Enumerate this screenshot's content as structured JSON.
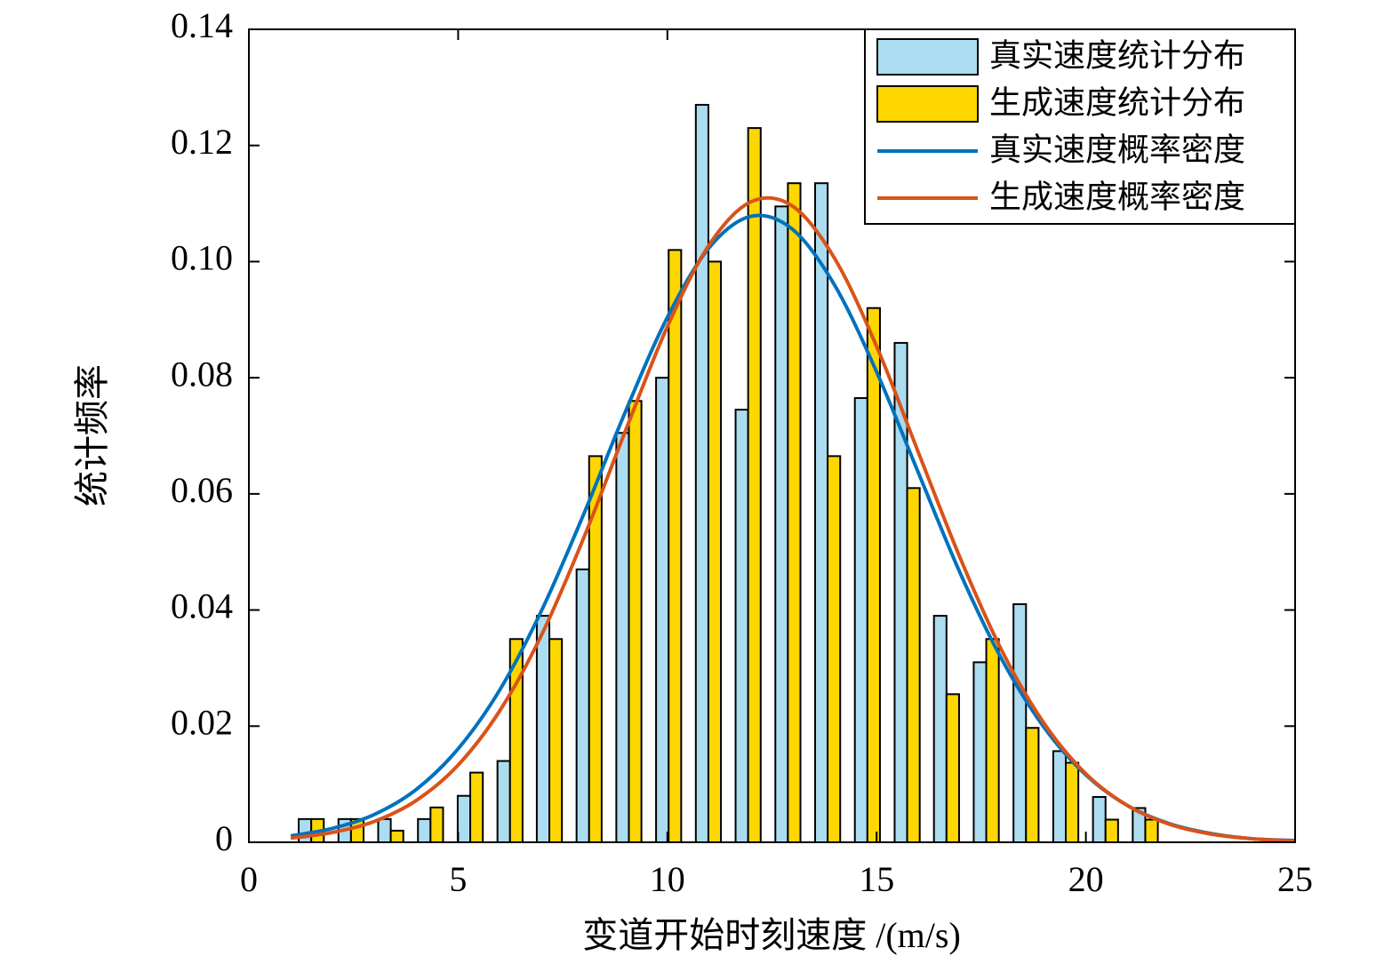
{
  "chart_data": {
    "type": "bar",
    "xlabel": "变道开始时刻速度 /(m/s)",
    "ylabel": "统计频率",
    "xlim": [
      0,
      25
    ],
    "xticks": [
      0,
      5,
      10,
      15,
      20,
      25
    ],
    "ylim": [
      0,
      0.14
    ],
    "yticks": [
      0,
      0.02,
      0.04,
      0.06,
      0.08,
      {
        "value": 0.1,
        "label": "0.10"
      },
      0.12,
      0.14
    ],
    "legend": "upper right",
    "x": [
      1.49,
      2.44,
      3.39,
      4.34,
      5.29,
      6.24,
      7.18,
      8.13,
      9.08,
      10.03,
      10.98,
      11.93,
      12.88,
      13.83,
      14.78,
      15.73,
      16.67,
      17.62,
      18.57,
      19.52,
      20.47,
      21.42
    ],
    "series": [
      {
        "name": "真实速度统计分布",
        "type": "bar",
        "color": "#acdcef",
        "values": [
          0.004,
          0.004,
          0.004,
          0.004,
          0.008,
          0.014,
          0.039,
          0.047,
          0.0705,
          0.08,
          0.127,
          0.0745,
          0.1095,
          0.1135,
          0.0765,
          0.086,
          0.039,
          0.031,
          0.041,
          0.0157,
          0.0078,
          0.0059
        ]
      },
      {
        "name": "生成速度统计分布",
        "type": "bar",
        "color": "#ffd700",
        "values": [
          0.004,
          0.004,
          0.002,
          0.006,
          0.012,
          0.035,
          0.035,
          0.0665,
          0.076,
          0.102,
          0.1,
          0.123,
          0.1135,
          0.0665,
          0.092,
          0.061,
          0.0255,
          0.035,
          0.0197,
          0.0137,
          0.0039,
          0.0039
        ]
      },
      {
        "name": "真实速度概率密度",
        "type": "line",
        "color": "#0072bd",
        "x": [
          1,
          2,
          3,
          4,
          5,
          6,
          7,
          8,
          9,
          10,
          11,
          12,
          13,
          14,
          15,
          16,
          17,
          18,
          19,
          20,
          21,
          22,
          23,
          24,
          25
        ],
        "values": [
          0.0011,
          0.0024,
          0.0048,
          0.0091,
          0.0161,
          0.0263,
          0.04,
          0.0565,
          0.0742,
          0.0904,
          0.1024,
          0.1078,
          0.1055,
          0.0959,
          0.081,
          0.0636,
          0.0463,
          0.0314,
          0.0198,
          0.0116,
          0.0063,
          0.0032,
          0.0015,
          0.0006,
          0.0003
        ]
      },
      {
        "name": "生成速度概率密度",
        "type": "line",
        "color": "#d95319",
        "x": [
          1,
          2,
          3,
          4,
          5,
          6,
          7,
          8,
          9,
          10,
          11,
          12,
          13,
          14,
          15,
          16,
          17,
          18,
          19,
          20,
          21,
          22,
          23,
          24,
          25
        ],
        "values": [
          0.0007,
          0.0017,
          0.0036,
          0.0072,
          0.0133,
          0.0227,
          0.0358,
          0.0524,
          0.0709,
          0.0888,
          0.1029,
          0.1103,
          0.1095,
          0.1005,
          0.0854,
          0.0671,
          0.0489,
          0.0329,
          0.0205,
          0.0118,
          0.0063,
          0.0031,
          0.0014,
          0.0006,
          0.0002
        ]
      }
    ]
  }
}
